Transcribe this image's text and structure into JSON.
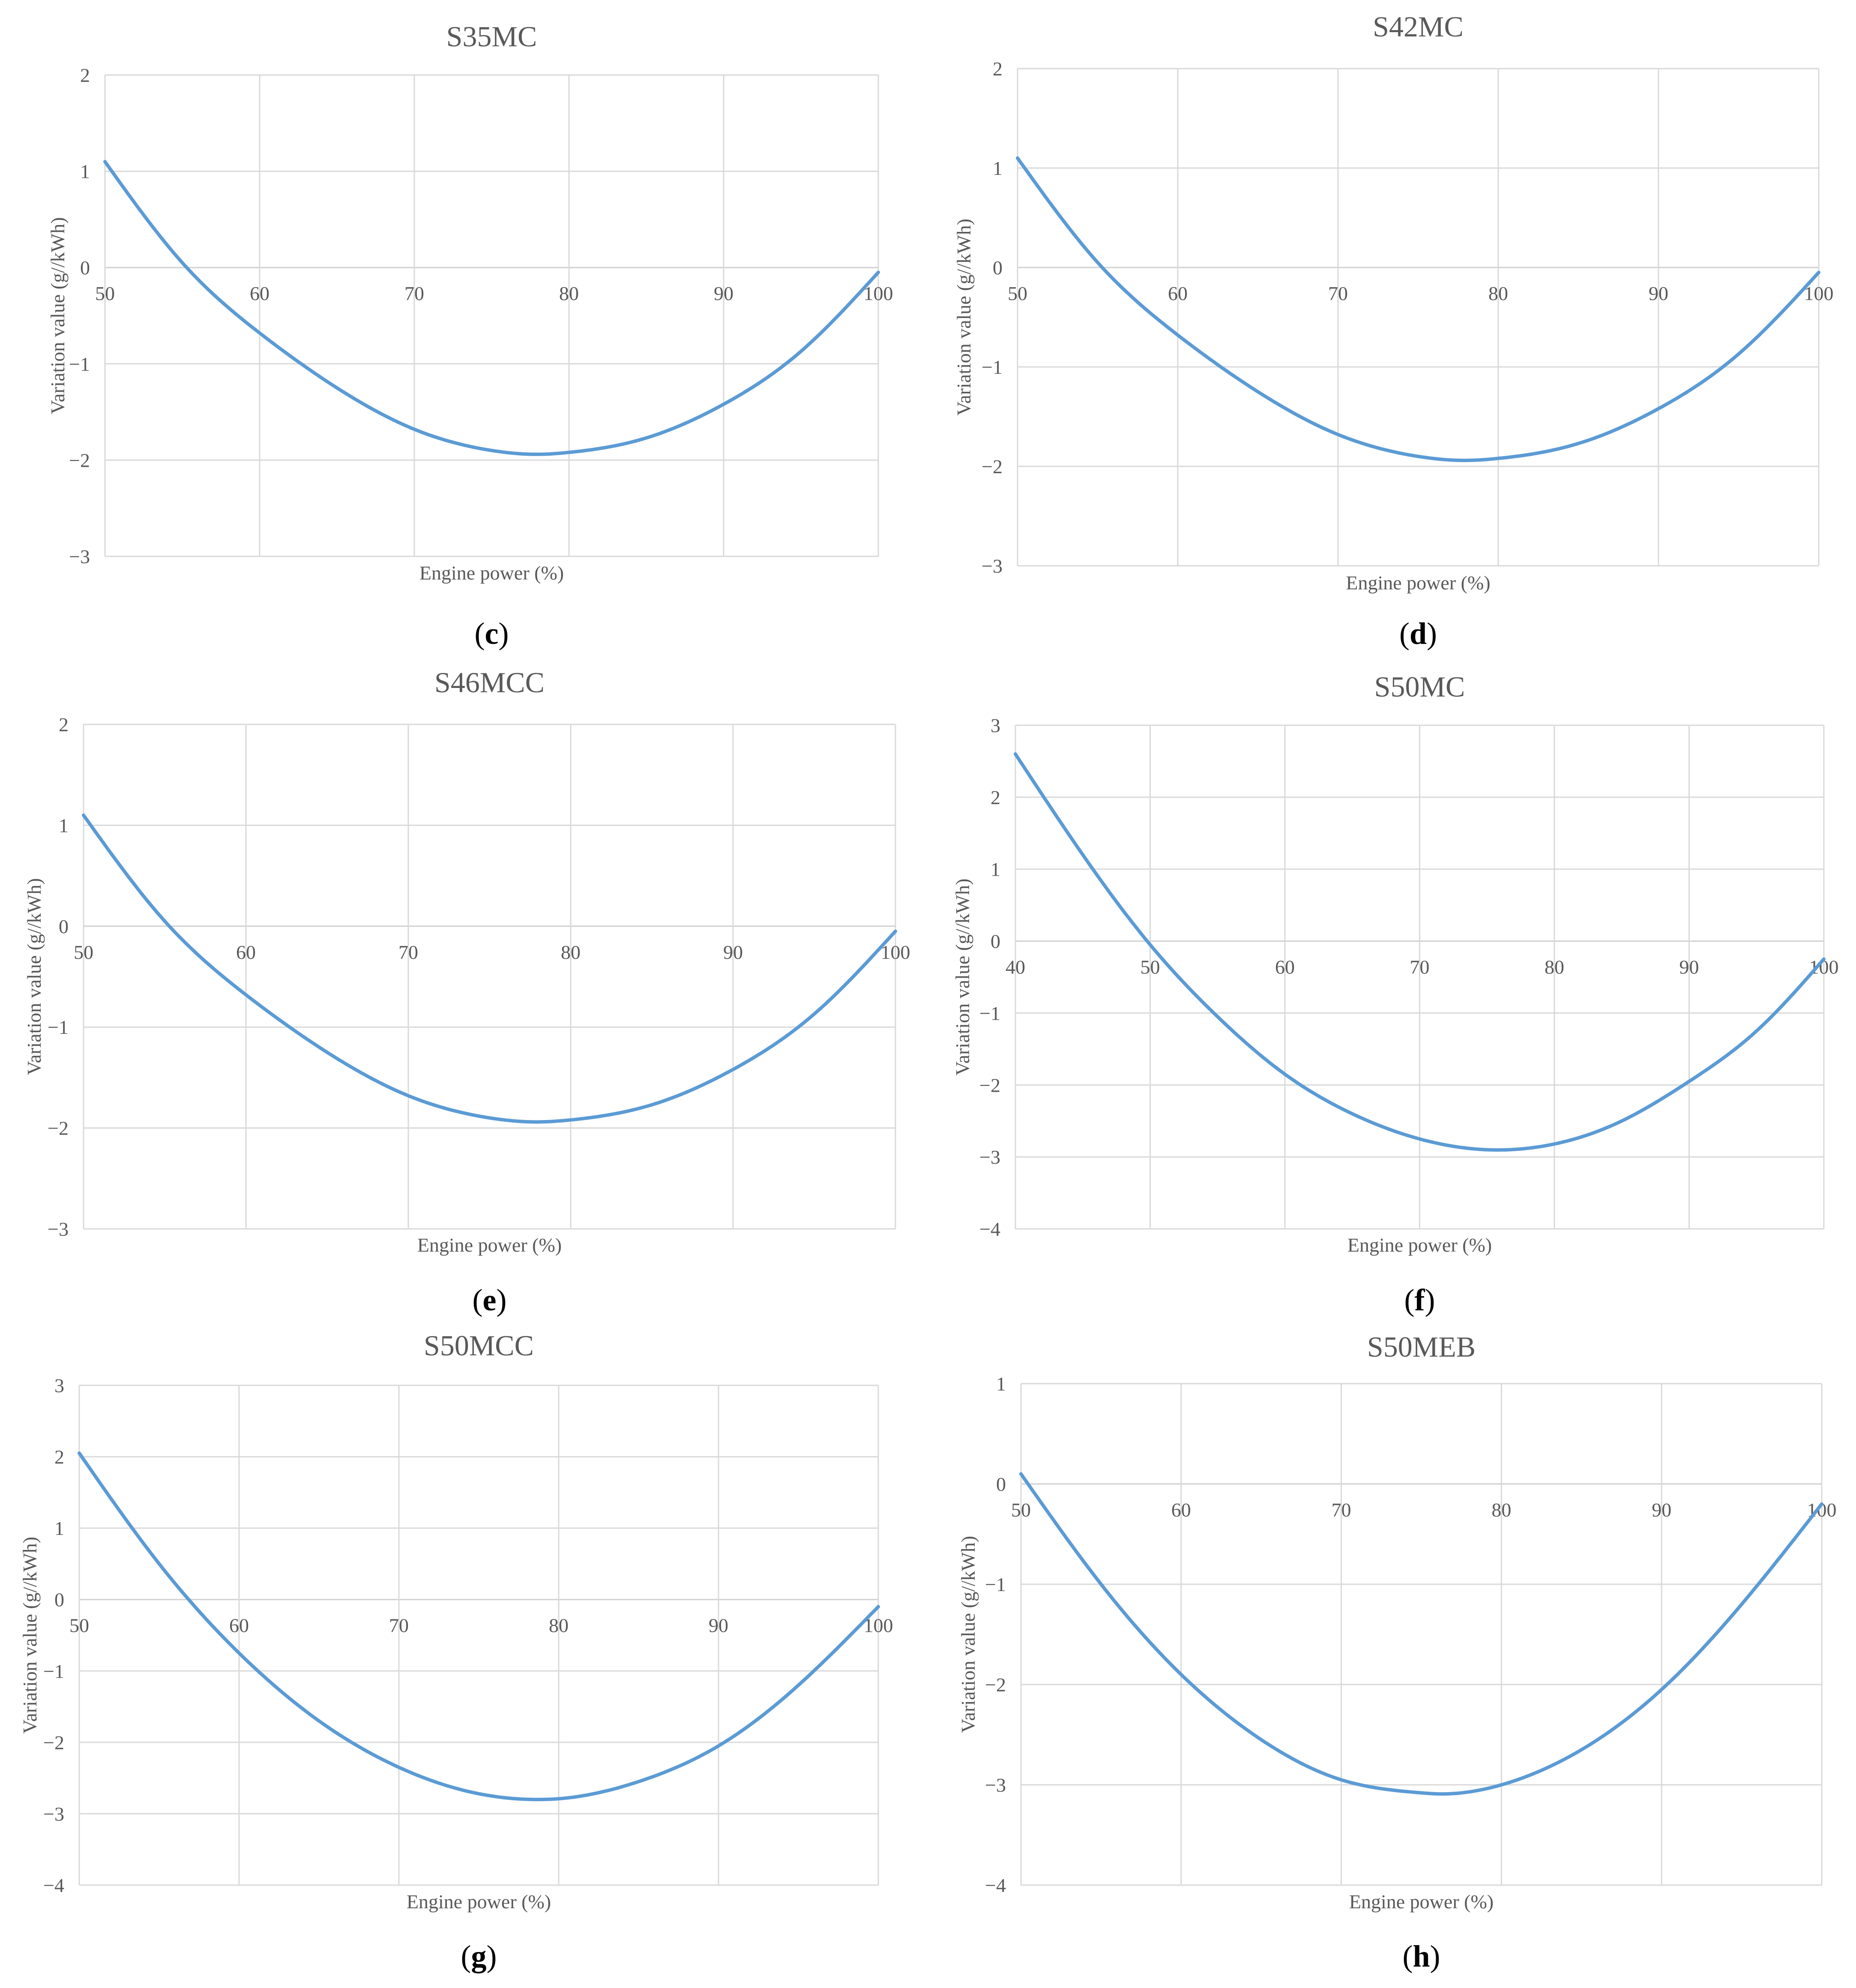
{
  "chart_data": [
    {
      "panel": "c",
      "type": "line",
      "title": "S35MC",
      "xlabel": "Engine power (%)",
      "ylabel": "Variation value (g//kWh)",
      "xlim": [
        50,
        100
      ],
      "ylim": [
        -3,
        2
      ],
      "x_ticks": [
        50,
        60,
        70,
        80,
        90,
        100
      ],
      "y_ticks": [
        2,
        1,
        0,
        -1,
        -2,
        -3
      ],
      "grid": true,
      "series": [
        {
          "color": "#5b9bd5",
          "x": [
            50,
            55,
            60,
            65,
            70,
            75,
            78,
            80,
            85,
            90,
            95,
            100
          ],
          "y": [
            1.1,
            0.05,
            -0.68,
            -1.25,
            -1.68,
            -1.9,
            -1.94,
            -1.92,
            -1.77,
            -1.42,
            -0.87,
            -0.05
          ]
        }
      ]
    },
    {
      "panel": "d",
      "type": "line",
      "title": "S42MC",
      "xlabel": "Engine power (%)",
      "ylabel": "Variation value (g//kWh)",
      "xlim": [
        50,
        100
      ],
      "ylim": [
        -3,
        2
      ],
      "x_ticks": [
        50,
        60,
        70,
        80,
        90,
        100
      ],
      "y_ticks": [
        2,
        1,
        0,
        -1,
        -2,
        -3
      ],
      "grid": true,
      "series": [
        {
          "color": "#5b9bd5",
          "x": [
            50,
            55,
            60,
            65,
            70,
            75,
            78,
            80,
            85,
            90,
            95,
            100
          ],
          "y": [
            1.1,
            0.05,
            -0.68,
            -1.25,
            -1.68,
            -1.9,
            -1.94,
            -1.92,
            -1.77,
            -1.42,
            -0.87,
            -0.05
          ]
        }
      ]
    },
    {
      "panel": "e",
      "type": "line",
      "title": "S46MCC",
      "xlabel": "Engine power (%)",
      "ylabel": "Variation value (g//kWh)",
      "xlim": [
        50,
        100
      ],
      "ylim": [
        -3,
        2
      ],
      "x_ticks": [
        50,
        60,
        70,
        80,
        90,
        100
      ],
      "y_ticks": [
        2,
        1,
        0,
        -1,
        -2,
        -3
      ],
      "grid": true,
      "series": [
        {
          "color": "#5b9bd5",
          "x": [
            50,
            55,
            60,
            65,
            70,
            75,
            78,
            80,
            85,
            90,
            95,
            100
          ],
          "y": [
            1.1,
            0.05,
            -0.68,
            -1.25,
            -1.68,
            -1.9,
            -1.94,
            -1.92,
            -1.77,
            -1.42,
            -0.87,
            -0.05
          ]
        }
      ]
    },
    {
      "panel": "f",
      "type": "line",
      "title": "S50MC",
      "xlabel": "Engine power (%)",
      "ylabel": "Variation value (g//kWh)",
      "xlim": [
        40,
        100
      ],
      "ylim": [
        -4,
        3
      ],
      "x_ticks": [
        40,
        50,
        60,
        70,
        80,
        90,
        100
      ],
      "y_ticks": [
        3,
        2,
        1,
        0,
        -1,
        -2,
        -3,
        -4
      ],
      "grid": true,
      "series": [
        {
          "color": "#5b9bd5",
          "x": [
            40,
            45,
            50,
            55,
            60,
            65,
            70,
            75,
            80,
            85,
            90,
            95,
            100
          ],
          "y": [
            2.6,
            1.2,
            -0.05,
            -1.05,
            -1.85,
            -2.4,
            -2.75,
            -2.9,
            -2.82,
            -2.5,
            -1.95,
            -1.25,
            -0.25
          ]
        }
      ]
    },
    {
      "panel": "g",
      "type": "line",
      "title": "S50MCC",
      "xlabel": "Engine power (%)",
      "ylabel": "Variation value (g//kWh)",
      "xlim": [
        50,
        100
      ],
      "ylim": [
        -4,
        3
      ],
      "x_ticks": [
        50,
        60,
        70,
        80,
        90,
        100
      ],
      "y_ticks": [
        3,
        2,
        1,
        0,
        -1,
        -2,
        -3,
        -4
      ],
      "grid": true,
      "series": [
        {
          "color": "#5b9bd5",
          "x": [
            50,
            55,
            60,
            65,
            70,
            75,
            79,
            80,
            85,
            90,
            95,
            100
          ],
          "y": [
            2.05,
            0.5,
            -0.75,
            -1.7,
            -2.35,
            -2.72,
            -2.8,
            -2.79,
            -2.55,
            -2.05,
            -1.2,
            -0.1
          ]
        }
      ]
    },
    {
      "panel": "h",
      "type": "line",
      "title": "S50MEB",
      "xlabel": "Engine power (%)",
      "ylabel": "Variation value (g//kWh)",
      "xlim": [
        50,
        100
      ],
      "ylim": [
        -4,
        1
      ],
      "x_ticks": [
        50,
        60,
        70,
        80,
        90,
        100
      ],
      "y_ticks": [
        1,
        0,
        -1,
        -2,
        -3,
        -4
      ],
      "grid": true,
      "series": [
        {
          "color": "#5b9bd5",
          "x": [
            50,
            55,
            60,
            65,
            70,
            75,
            76,
            80,
            85,
            90,
            95,
            100
          ],
          "y": [
            0.1,
            -1.0,
            -1.9,
            -2.55,
            -2.95,
            -3.08,
            -3.09,
            -3.0,
            -2.65,
            -2.05,
            -1.2,
            -0.2
          ]
        }
      ]
    }
  ]
}
